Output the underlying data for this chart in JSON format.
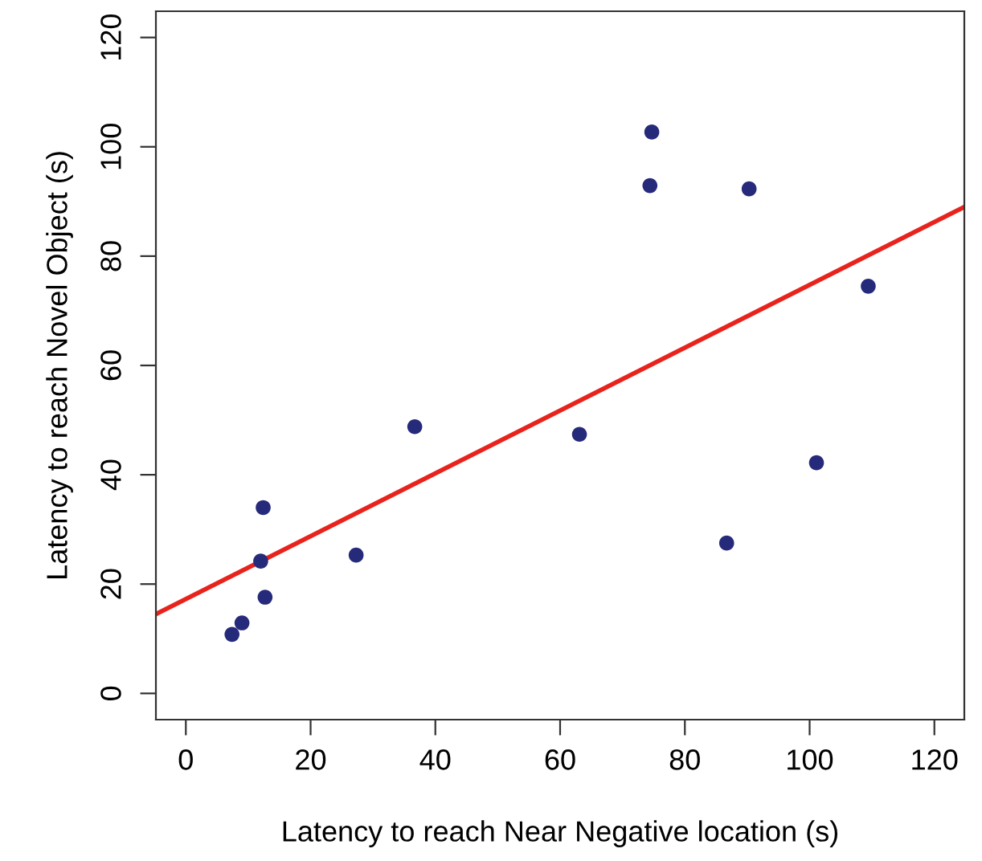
{
  "chart_data": {
    "type": "scatter",
    "xlabel": "Latency to reach Near Negative location (s)",
    "ylabel": "Latency to reach Novel Object (s)",
    "xlim": [
      -4.8,
      124.8
    ],
    "ylim": [
      -4.8,
      124.8
    ],
    "xticks": [
      0,
      20,
      40,
      60,
      80,
      100,
      120
    ],
    "yticks": [
      0,
      20,
      40,
      60,
      80,
      100,
      120
    ],
    "grid": false,
    "series": [
      {
        "marker": "circle",
        "color": "#262a7a",
        "x": [
          7.4,
          9.0,
          12.4,
          12.0,
          12.7,
          27.3,
          36.7,
          63.1,
          86.7,
          101.1,
          74.7,
          74.4,
          90.3,
          109.4
        ],
        "values": [
          10.8,
          12.9,
          34.0,
          24.2,
          17.6,
          25.3,
          48.8,
          47.4,
          27.5,
          42.2,
          102.7,
          92.9,
          92.3,
          74.5
        ]
      },
      {
        "type": "line",
        "color": "#e8231c",
        "line_style": "solid",
        "x": [
          -4.8,
          124.8
        ],
        "values": [
          14.5,
          89.0
        ]
      }
    ]
  }
}
